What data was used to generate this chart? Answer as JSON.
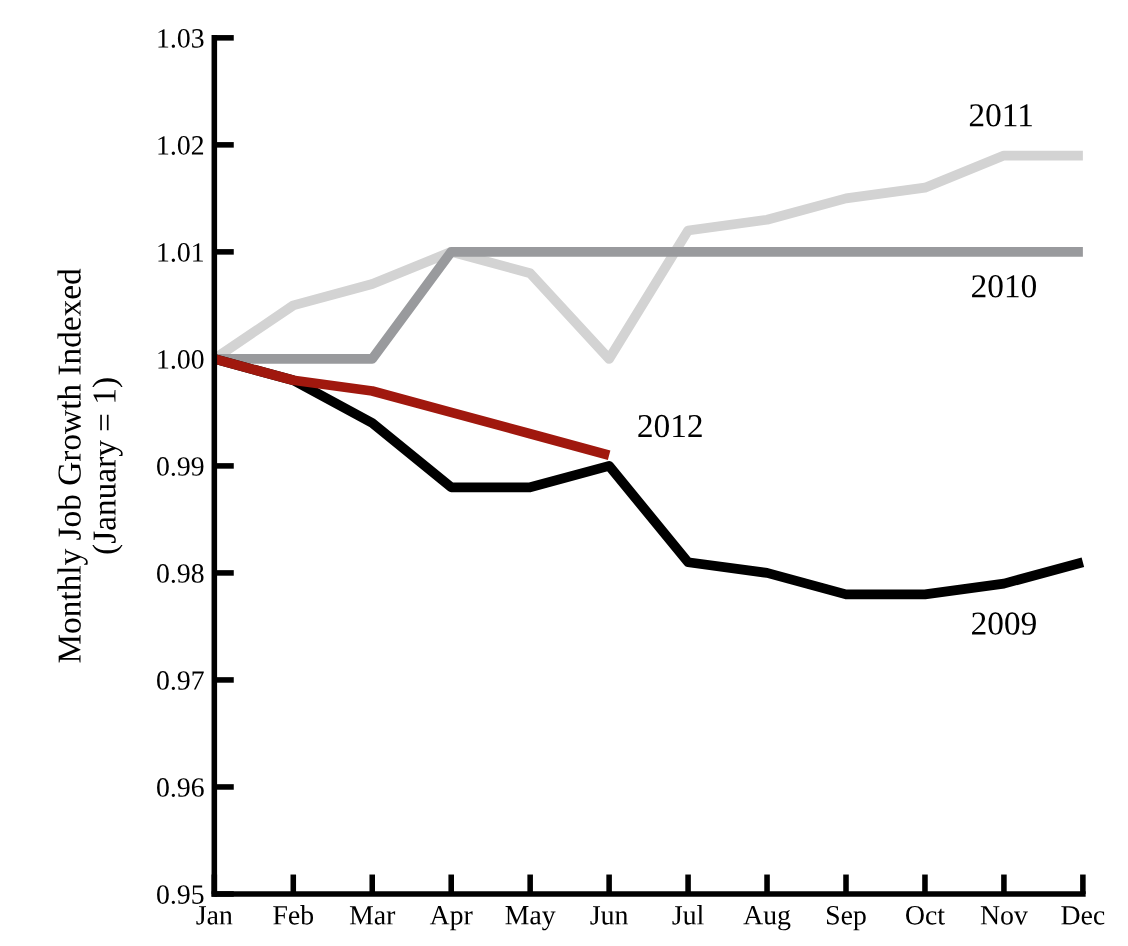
{
  "chart_data": {
    "type": "line",
    "ylabel": "Monthly Job Growth Indexed\n(January = 1)",
    "categories": [
      "Jan",
      "Feb",
      "Mar",
      "Apr",
      "May",
      "Jun",
      "Jul",
      "Aug",
      "Sep",
      "Oct",
      "Nov",
      "Dec"
    ],
    "series": [
      {
        "name": "2011",
        "color": "#d3d3d3",
        "values": [
          1.0,
          1.005,
          1.007,
          1.01,
          1.008,
          1.0,
          1.012,
          1.013,
          1.015,
          1.016,
          1.019,
          1.019
        ]
      },
      {
        "name": "2010",
        "color": "#999a9d",
        "values": [
          1.0,
          1.0,
          1.0,
          1.01,
          1.01,
          1.01,
          1.01,
          1.01,
          1.01,
          1.01,
          1.01,
          1.01
        ]
      },
      {
        "name": "2009",
        "color": "#000000",
        "values": [
          1.0,
          0.998,
          0.994,
          0.988,
          0.988,
          0.99,
          0.981,
          0.98,
          0.978,
          0.978,
          0.979,
          0.981
        ]
      },
      {
        "name": "2012",
        "color": "#a0180e",
        "values": [
          1.0,
          0.998,
          0.997,
          0.995,
          0.993,
          0.991,
          null,
          null,
          null,
          null,
          null,
          null
        ]
      }
    ],
    "ylim": [
      0.95,
      1.03
    ],
    "yticks": [
      0.95,
      0.96,
      0.97,
      0.98,
      0.99,
      {
        "value": 1.0,
        "label": "1.00"
      },
      1.01,
      1.02,
      1.03
    ],
    "grid": false,
    "legend": false,
    "marker": "none",
    "line_style": "solid"
  }
}
